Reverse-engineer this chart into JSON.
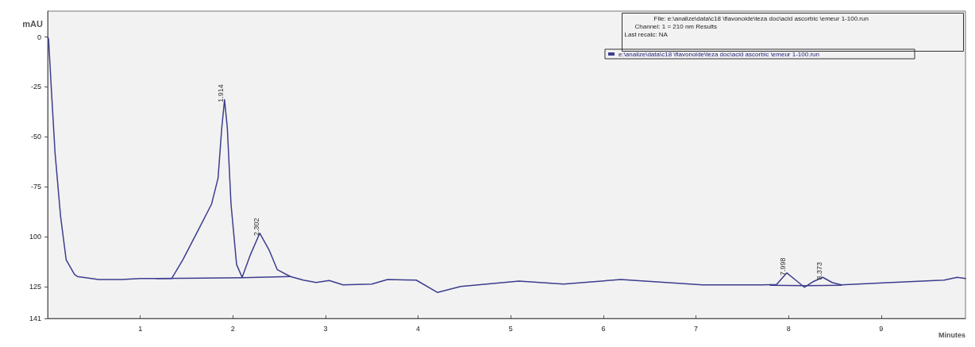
{
  "chart_data": {
    "type": "line",
    "xlabel": "Minutes",
    "ylabel": "mAU",
    "xlim": [
      0,
      9.91
    ],
    "xticks": [
      1,
      2,
      3,
      4,
      5,
      6,
      7,
      8,
      9
    ],
    "ylim": [
      -141,
      13
    ],
    "yticks": [
      0,
      -25,
      -50,
      -75,
      {
        "value": -100,
        "label": "100"
      },
      {
        "value": -125,
        "label": "125"
      },
      {
        "value": -141,
        "label": "141"
      }
    ],
    "grid": false,
    "legend": "top right",
    "marker": "none",
    "line_style": "solid",
    "annotations": [
      "File: e:\\analize\\data\\c18 \\flavonoide\\teza doc\\acid ascorbic \\emeur 1-100.run",
      "Channel: 1 = 210 nm Results",
      "Last recalc: NA",
      {
        "text": "1.914",
        "x": 1.91,
        "y": -31.4
      },
      {
        "text": "2.302",
        "x": 2.29,
        "y": -98.3
      },
      {
        "text": "7.998",
        "x": 7.98,
        "y": -118.2
      },
      {
        "text": "8.373",
        "x": 8.37,
        "y": -120.4
      }
    ],
    "series": [
      {
        "name": "e:\\analize\\data\\c18 \\flavonoide\\teza doc\\acid ascorbic \\emeur 1-100.run",
        "color": "#3d3d8f",
        "x": [
          0,
          0.01,
          0.04,
          0.08,
          0.14,
          0.2,
          0.29,
          0.32,
          0.55,
          0.8,
          1.0,
          1.17,
          1.34,
          1.46,
          1.63,
          1.77,
          1.84,
          1.88,
          1.91,
          1.94,
          1.98,
          2.04,
          2.1,
          2.19,
          2.29,
          2.39,
          2.48,
          2.62,
          2.76,
          2.9,
          3.04,
          3.19,
          3.5,
          3.67,
          3.98,
          4.21,
          4.46,
          5.09,
          5.57,
          6.19,
          6.45,
          7.07,
          7.72,
          7.87,
          7.98,
          8.09,
          8.17,
          8.26,
          8.37,
          8.47,
          8.57,
          9.11,
          9.68,
          9.82,
          9.91
        ],
        "values": [
          0,
          -1,
          -26,
          -58,
          -90,
          -111.6,
          -119,
          -120,
          -121.5,
          -121.5,
          -121,
          -121,
          -121,
          -111.6,
          -96.4,
          -83.7,
          -70.7,
          -45.5,
          -31.4,
          -45.5,
          -83.7,
          -114,
          -120.4,
          -109,
          -98.3,
          -106.6,
          -116.6,
          -120,
          -121.8,
          -123,
          -122,
          -124.2,
          -123.8,
          -121.5,
          -121.8,
          -128,
          -125,
          -122.3,
          -123.8,
          -121.5,
          -122.3,
          -124.2,
          -124.2,
          -124,
          -118.2,
          -122.3,
          -125.4,
          -122.7,
          -120.4,
          -123,
          -124.2,
          -123,
          -121.8,
          -120.4,
          -121
        ]
      },
      {
        "color": "#3d3d8f",
        "x": [
          1.17,
          2.1,
          2.62
        ],
        "values": [
          -121,
          -120.6,
          -120
        ]
      },
      {
        "color": "#3d3d8f",
        "x": [
          7.8,
          8.17,
          8.57
        ],
        "values": [
          -124.4,
          -124.6,
          -124.4
        ]
      }
    ]
  }
}
